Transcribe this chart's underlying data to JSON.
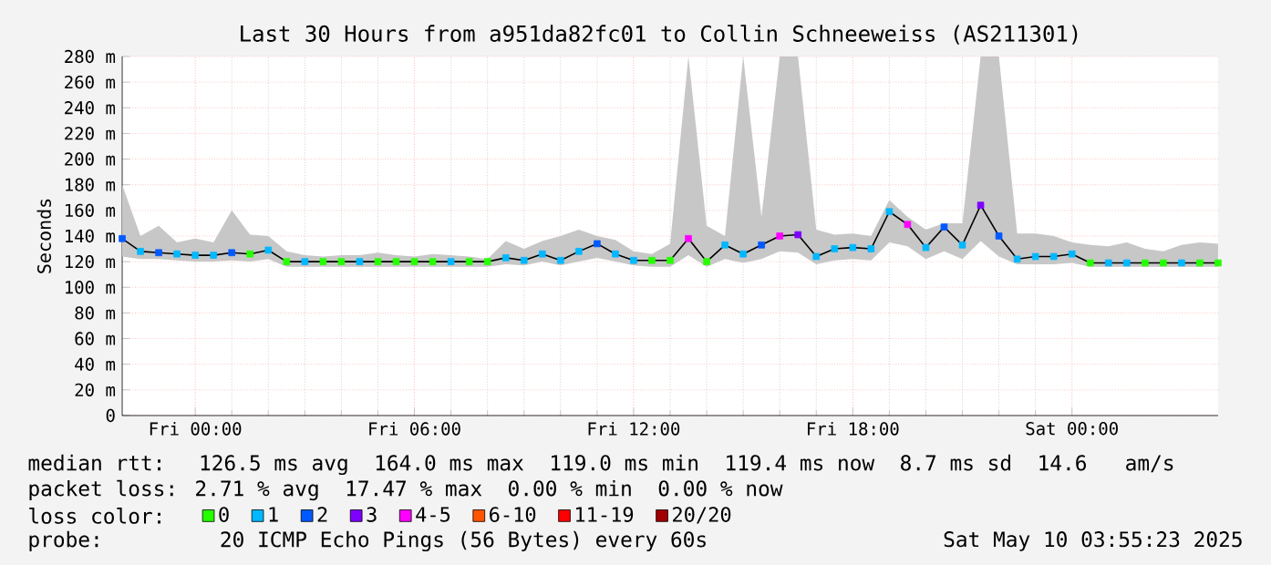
{
  "chart_data": {
    "type": "line",
    "title": "Last 30 Hours from a951da82fc01 to Collin Schneeweiss (AS211301)",
    "ylabel": "Seconds",
    "legend_title": "loss color:",
    "x": [
      "2025-05-08T22:00",
      "2025-05-08T22:30",
      "2025-05-08T23:00",
      "2025-05-08T23:30",
      "2025-05-09T00:00",
      "2025-05-09T00:30",
      "2025-05-09T01:00",
      "2025-05-09T01:30",
      "2025-05-09T02:00",
      "2025-05-09T02:30",
      "2025-05-09T03:00",
      "2025-05-09T03:30",
      "2025-05-09T04:00",
      "2025-05-09T04:30",
      "2025-05-09T05:00",
      "2025-05-09T05:30",
      "2025-05-09T06:00",
      "2025-05-09T06:30",
      "2025-05-09T07:00",
      "2025-05-09T07:30",
      "2025-05-09T08:00",
      "2025-05-09T08:30",
      "2025-05-09T09:00",
      "2025-05-09T09:30",
      "2025-05-09T10:00",
      "2025-05-09T10:30",
      "2025-05-09T11:00",
      "2025-05-09T11:30",
      "2025-05-09T12:00",
      "2025-05-09T12:30",
      "2025-05-09T13:00",
      "2025-05-09T13:30",
      "2025-05-09T14:00",
      "2025-05-09T14:30",
      "2025-05-09T15:00",
      "2025-05-09T15:30",
      "2025-05-09T16:00",
      "2025-05-09T16:30",
      "2025-05-09T17:00",
      "2025-05-09T17:30",
      "2025-05-09T18:00",
      "2025-05-09T18:30",
      "2025-05-09T19:00",
      "2025-05-09T19:30",
      "2025-05-09T20:00",
      "2025-05-09T20:30",
      "2025-05-09T21:00",
      "2025-05-09T21:30",
      "2025-05-09T22:00",
      "2025-05-09T22:30",
      "2025-05-09T23:00",
      "2025-05-09T23:30",
      "2025-05-10T00:00",
      "2025-05-10T00:30",
      "2025-05-10T01:00",
      "2025-05-10T01:30",
      "2025-05-10T02:00",
      "2025-05-10T02:30",
      "2025-05-10T03:00",
      "2025-05-10T03:30",
      "2025-05-10T04:00"
    ],
    "xlim": [
      "2025-05-08T22:00",
      "2025-05-10T04:00"
    ],
    "xticks": [
      {
        "value": "2025-05-09T00:00",
        "label": "Fri 00:00"
      },
      {
        "value": "2025-05-09T06:00",
        "label": "Fri 06:00"
      },
      {
        "value": "2025-05-09T12:00",
        "label": "Fri 12:00"
      },
      {
        "value": "2025-05-09T18:00",
        "label": "Fri 18:00"
      },
      {
        "value": "2025-05-10T00:00",
        "label": "Sat 00:00"
      }
    ],
    "ylim": [
      0,
      280
    ],
    "yticks": [
      0,
      {
        "value": 20,
        "label": "20 m"
      },
      {
        "value": 40,
        "label": "40 m"
      },
      {
        "value": 60,
        "label": "60 m"
      },
      {
        "value": 80,
        "label": "80 m"
      },
      {
        "value": 100,
        "label": "100 m"
      },
      {
        "value": 120,
        "label": "120 m"
      },
      {
        "value": 140,
        "label": "140 m"
      },
      {
        "value": 160,
        "label": "160 m"
      },
      {
        "value": 180,
        "label": "180 m"
      },
      {
        "value": 200,
        "label": "200 m"
      },
      {
        "value": 220,
        "label": "220 m"
      },
      {
        "value": 240,
        "label": "240 m"
      },
      {
        "value": 260,
        "label": "260 m"
      },
      {
        "value": 280,
        "label": "280 m"
      }
    ],
    "grid": true,
    "legend": "bottom",
    "series": [
      {
        "color": "#000000",
        "values": [
          138,
          128,
          127,
          126,
          125,
          125,
          127,
          126,
          129,
          120,
          120,
          120,
          120,
          120,
          120,
          120,
          120,
          120,
          120,
          120,
          120,
          123,
          121,
          126,
          121,
          128,
          134,
          126,
          121,
          121,
          121,
          138,
          120,
          133,
          126,
          133,
          140,
          141,
          124,
          130,
          131,
          130,
          159,
          149,
          131,
          147,
          133,
          164,
          140,
          122,
          124,
          124,
          126,
          119,
          119,
          119,
          119,
          119,
          119,
          119,
          119
        ],
        "lower": [
          124,
          122,
          122,
          121,
          120,
          120,
          121,
          120,
          122,
          116,
          116,
          116,
          116,
          116,
          116,
          116,
          116,
          116,
          116,
          116,
          116,
          118,
          117,
          120,
          117,
          120,
          123,
          120,
          117,
          116,
          116,
          125,
          116,
          122,
          119,
          122,
          128,
          127,
          118,
          121,
          122,
          121,
          135,
          132,
          122,
          128,
          122,
          136,
          124,
          118,
          118,
          118,
          119,
          116,
          116,
          116,
          116,
          116,
          116,
          116,
          116
        ],
        "upper": [
          180,
          140,
          148,
          135,
          138,
          135,
          160,
          141,
          140,
          128,
          125,
          124,
          125,
          125,
          127,
          125,
          124,
          126,
          125,
          124,
          122,
          136,
          130,
          136,
          140,
          145,
          140,
          137,
          128,
          126,
          134,
          280,
          148,
          140,
          280,
          155,
          280,
          280,
          145,
          141,
          142,
          140,
          168,
          155,
          145,
          150,
          150,
          280,
          280,
          142,
          142,
          140,
          135,
          133,
          132,
          135,
          130,
          128,
          133,
          135,
          134
        ]
      },
      {
        "type": "scatter",
        "name": "0",
        "color": "#26ff00",
        "marker": "square",
        "x": [
          "2025-05-09T01:30",
          "2025-05-09T02:30",
          "2025-05-09T03:30",
          "2025-05-09T04:00",
          "2025-05-09T05:00",
          "2025-05-09T05:30",
          "2025-05-09T06:00",
          "2025-05-09T06:30",
          "2025-05-09T07:30",
          "2025-05-09T08:00",
          "2025-05-09T12:30",
          "2025-05-09T13:00",
          "2025-05-09T14:00",
          "2025-05-10T00:30",
          "2025-05-10T02:00",
          "2025-05-10T02:30",
          "2025-05-10T03:30",
          "2025-05-10T04:00"
        ],
        "values": [
          126,
          120,
          120,
          120,
          120,
          120,
          120,
          120,
          120,
          120,
          121,
          121,
          120,
          119,
          119,
          119,
          119,
          119
        ]
      },
      {
        "type": "scatter",
        "name": "1",
        "color": "#00b8ff",
        "marker": "square",
        "x": [
          "2025-05-08T22:30",
          "2025-05-08T23:30",
          "2025-05-09T00:00",
          "2025-05-09T00:30",
          "2025-05-09T02:00",
          "2025-05-09T03:00",
          "2025-05-09T04:30",
          "2025-05-09T07:00",
          "2025-05-09T08:30",
          "2025-05-09T09:00",
          "2025-05-09T09:30",
          "2025-05-09T10:00",
          "2025-05-09T10:30",
          "2025-05-09T11:30",
          "2025-05-09T12:00",
          "2025-05-09T14:30",
          "2025-05-09T15:00",
          "2025-05-09T17:00",
          "2025-05-09T17:30",
          "2025-05-09T18:00",
          "2025-05-09T18:30",
          "2025-05-09T19:00",
          "2025-05-09T20:00",
          "2025-05-09T21:00",
          "2025-05-09T22:30",
          "2025-05-09T23:00",
          "2025-05-09T23:30",
          "2025-05-10T00:00",
          "2025-05-10T01:00",
          "2025-05-10T01:30",
          "2025-05-10T03:00"
        ],
        "values": [
          128,
          126,
          125,
          125,
          129,
          120,
          120,
          120,
          123,
          121,
          126,
          121,
          128,
          126,
          121,
          133,
          126,
          124,
          130,
          131,
          130,
          159,
          131,
          133,
          122,
          124,
          124,
          126,
          119,
          119,
          119
        ]
      },
      {
        "type": "scatter",
        "name": "2",
        "color": "#0059ff",
        "marker": "square",
        "x": [
          "2025-05-08T22:00",
          "2025-05-08T23:00",
          "2025-05-09T01:00",
          "2025-05-09T11:00",
          "2025-05-09T15:30",
          "2025-05-09T20:30",
          "2025-05-09T22:00"
        ],
        "values": [
          138,
          127,
          127,
          134,
          133,
          147,
          140
        ]
      },
      {
        "type": "scatter",
        "name": "3",
        "color": "#7e00ff",
        "marker": "square",
        "x": [
          "2025-05-09T16:30",
          "2025-05-09T21:30"
        ],
        "values": [
          141,
          164
        ]
      },
      {
        "type": "scatter",
        "name": "4-5",
        "color": "#ff00ff",
        "marker": "square",
        "x": [
          "2025-05-09T13:30",
          "2025-05-09T16:00",
          "2025-05-09T19:30"
        ],
        "values": [
          138,
          140,
          149
        ]
      },
      {
        "type": "scatter",
        "name": "6-10",
        "color": "#ff5500",
        "marker": "square",
        "values": [
          null,
          null,
          null,
          null,
          null,
          null,
          null,
          null,
          null,
          null,
          null,
          null,
          null,
          null,
          null,
          null,
          null,
          null,
          null,
          null,
          null,
          null,
          null,
          null,
          null,
          null,
          null,
          null,
          null,
          null,
          null,
          null,
          null,
          null,
          null,
          null,
          null,
          null,
          null,
          null,
          null,
          null,
          null,
          null,
          null,
          null,
          null,
          null,
          null,
          null,
          null,
          null,
          null,
          null,
          null,
          null,
          null,
          null,
          null,
          null,
          null
        ]
      },
      {
        "type": "scatter",
        "name": "11-19",
        "color": "#ff0000",
        "marker": "square",
        "values": [
          null,
          null,
          null,
          null,
          null,
          null,
          null,
          null,
          null,
          null,
          null,
          null,
          null,
          null,
          null,
          null,
          null,
          null,
          null,
          null,
          null,
          null,
          null,
          null,
          null,
          null,
          null,
          null,
          null,
          null,
          null,
          null,
          null,
          null,
          null,
          null,
          null,
          null,
          null,
          null,
          null,
          null,
          null,
          null,
          null,
          null,
          null,
          null,
          null,
          null,
          null,
          null,
          null,
          null,
          null,
          null,
          null,
          null,
          null,
          null,
          null
        ]
      },
      {
        "type": "scatter",
        "name": "20/20",
        "color": "#a10000",
        "marker": "square",
        "values": [
          null,
          null,
          null,
          null,
          null,
          null,
          null,
          null,
          null,
          null,
          null,
          null,
          null,
          null,
          null,
          null,
          null,
          null,
          null,
          null,
          null,
          null,
          null,
          null,
          null,
          null,
          null,
          null,
          null,
          null,
          null,
          null,
          null,
          null,
          null,
          null,
          null,
          null,
          null,
          null,
          null,
          null,
          null,
          null,
          null,
          null,
          null,
          null,
          null,
          null,
          null,
          null,
          null,
          null,
          null,
          null,
          null,
          null,
          null,
          null,
          null
        ]
      }
    ],
    "annotations": [
      "median rtt:  126.5 ms avg  164.0 ms max  119.0 ms min  119.4 ms now  8.7 ms sd  14.6   am/s",
      "packet loss: 2.71 % avg  17.47 % max  0.00 % min  0.00 % now",
      "probe:       20 ICMP Echo Pings (56 Bytes) every 60s",
      "Sat May 10 03:55:23 2025"
    ]
  }
}
